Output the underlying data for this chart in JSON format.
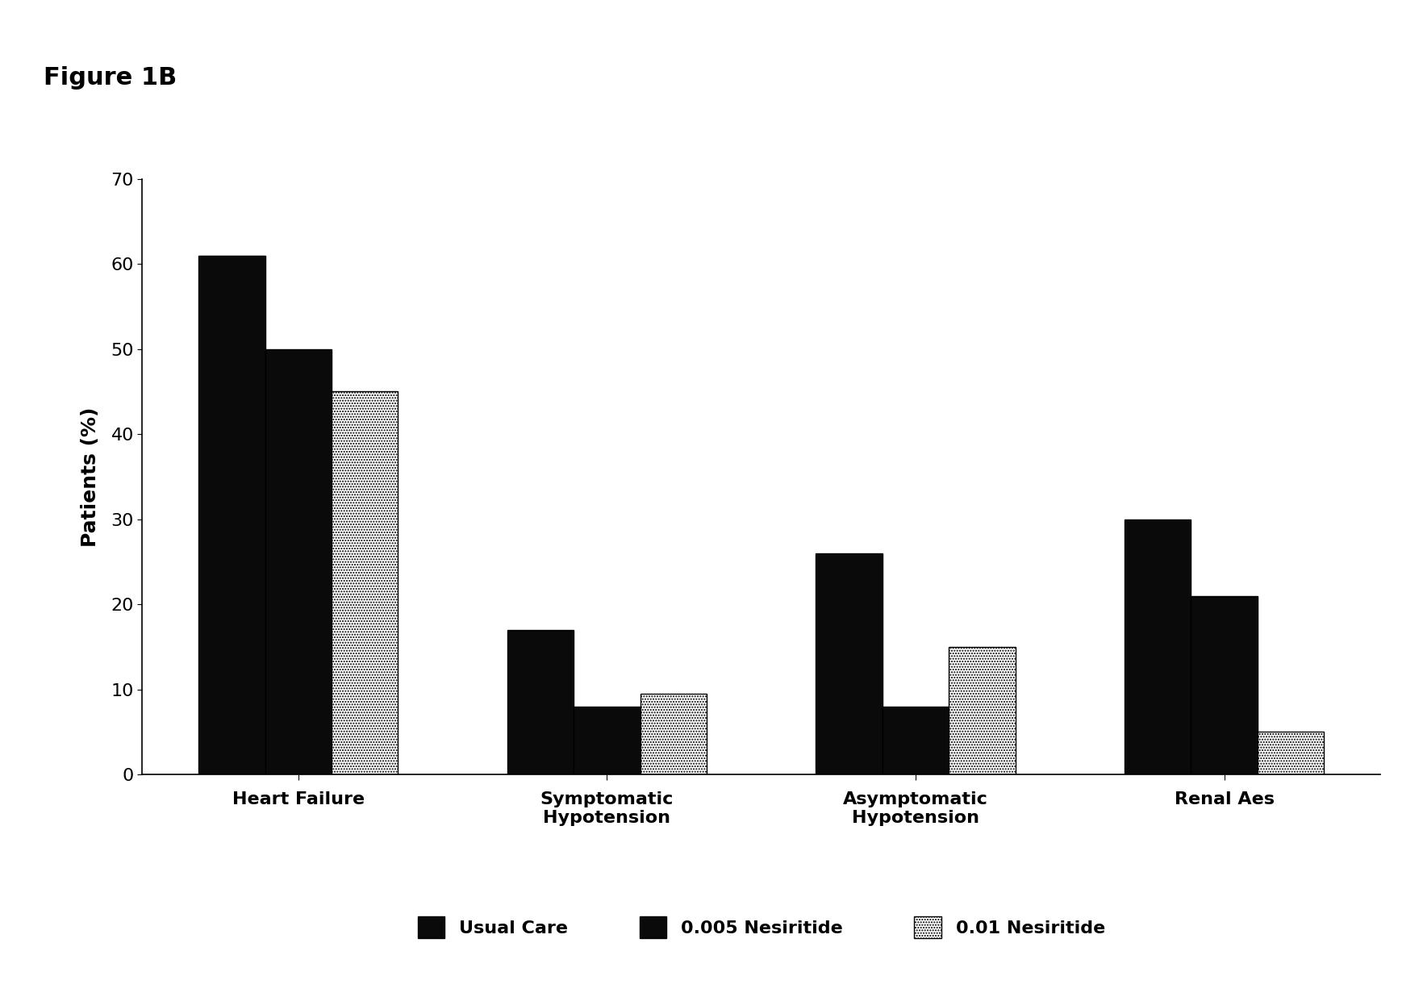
{
  "title": "Figure 1B",
  "ylabel": "Patients (%)",
  "categories": [
    "Heart Failure",
    "Symptomatic\nHypotension",
    "Asymptomatic\nHypotension",
    "Renal Aes"
  ],
  "series": {
    "Usual Care": [
      61,
      17,
      26,
      30
    ],
    "0.005 Nesiritide": [
      50,
      8,
      8,
      21
    ],
    "0.01 Nesiritide": [
      45,
      9.5,
      15,
      5
    ]
  },
  "bar_colors": {
    "Usual Care": "#0a0a0a",
    "0.005 Nesiritide": "#0a0a0a",
    "0.01 Nesiritide": "#ffffff"
  },
  "bar_hatch": {
    "Usual Care": "",
    "0.005 Nesiritide": "",
    "0.01 Nesiritide": "....."
  },
  "ylim": [
    0,
    70
  ],
  "yticks": [
    0,
    10,
    20,
    30,
    40,
    50,
    60,
    70
  ],
  "background_color": "#ffffff",
  "legend_labels": [
    "Usual Care",
    "0.005 Nesiritide",
    "0.01 Nesiritide"
  ],
  "legend_colors": [
    "#0a0a0a",
    "#0a0a0a",
    "#ffffff"
  ],
  "legend_hatches": [
    "",
    "",
    "....."
  ],
  "bar_width": 0.28,
  "title_fontsize": 22,
  "axis_fontsize": 18,
  "tick_fontsize": 16,
  "legend_fontsize": 16
}
